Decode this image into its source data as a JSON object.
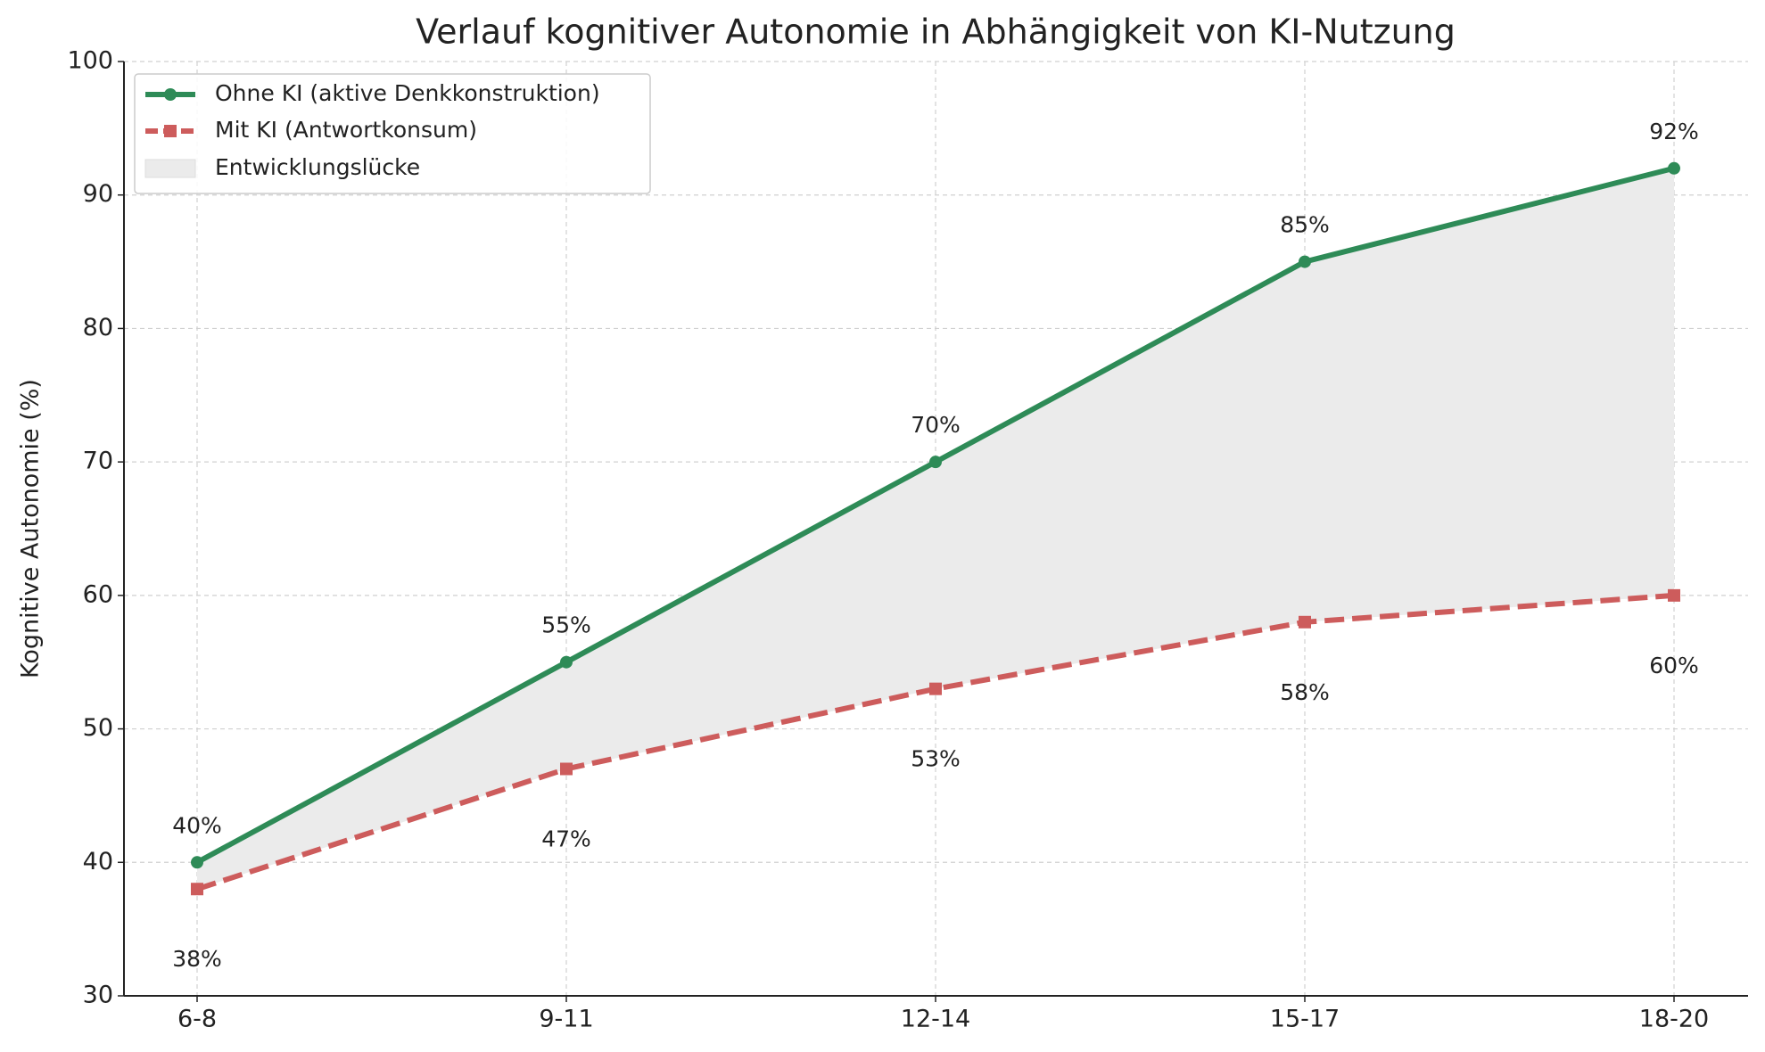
{
  "chart_data": {
    "type": "line",
    "title": "Verlauf kognitiver Autonomie in Abhängigkeit von KI-Nutzung",
    "ylabel": "Kognitive Autonomie (%)",
    "categories": [
      "6-8",
      "9-11",
      "12-14",
      "15-17",
      "18-20"
    ],
    "series": [
      {
        "name": "Ohne KI (aktive Denkkonstruktion)",
        "color": "#2e8b57",
        "marker": "circle",
        "linestyle": "solid",
        "values": [
          40,
          55,
          70,
          85,
          92
        ],
        "value_labels": [
          "40%",
          "55%",
          "70%",
          "85%",
          "92%"
        ]
      },
      {
        "name": "Mit KI (Antwortkonsum)",
        "color": "#cd5c5c",
        "marker": "square",
        "linestyle": "dashed",
        "values": [
          38,
          47,
          53,
          58,
          60
        ],
        "value_labels": [
          "38%",
          "47%",
          "53%",
          "58%",
          "60%"
        ]
      }
    ],
    "fill": {
      "label": "Entwicklungslücke",
      "color": "#ebebeb"
    },
    "ylim": [
      30,
      100
    ],
    "yticks": [
      30,
      40,
      50,
      60,
      70,
      80,
      90,
      100
    ],
    "grid": true,
    "legend": "upper left"
  }
}
